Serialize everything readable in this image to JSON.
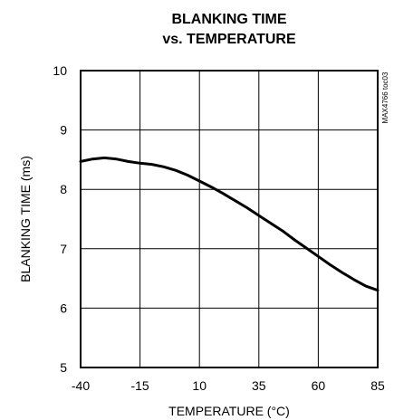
{
  "chart_data": {
    "type": "line",
    "title": [
      "BLANKING TIME",
      "vs. TEMPERATURE"
    ],
    "xlabel": "TEMPERATURE (°C)",
    "ylabel": "BLANKING TIME (ms)",
    "code": "MAX4766 toc03",
    "xlim": [
      -40,
      85
    ],
    "ylim": [
      5,
      10
    ],
    "xticks": [
      -40,
      -15,
      10,
      35,
      60,
      85
    ],
    "yticks": [
      5,
      6,
      7,
      8,
      9,
      10
    ],
    "grid": true,
    "series": [
      {
        "x": [
          -40,
          -35,
          -30,
          -25,
          -20,
          -15,
          -10,
          -5,
          0,
          5,
          10,
          15,
          20,
          25,
          30,
          35,
          40,
          45,
          50,
          55,
          60,
          65,
          70,
          75,
          80,
          85
        ],
        "y": [
          8.47,
          8.51,
          8.53,
          8.51,
          8.47,
          8.44,
          8.42,
          8.38,
          8.32,
          8.24,
          8.14,
          8.04,
          7.93,
          7.81,
          7.69,
          7.56,
          7.43,
          7.3,
          7.15,
          7.01,
          6.87,
          6.73,
          6.6,
          6.48,
          6.37,
          6.3
        ]
      }
    ]
  }
}
